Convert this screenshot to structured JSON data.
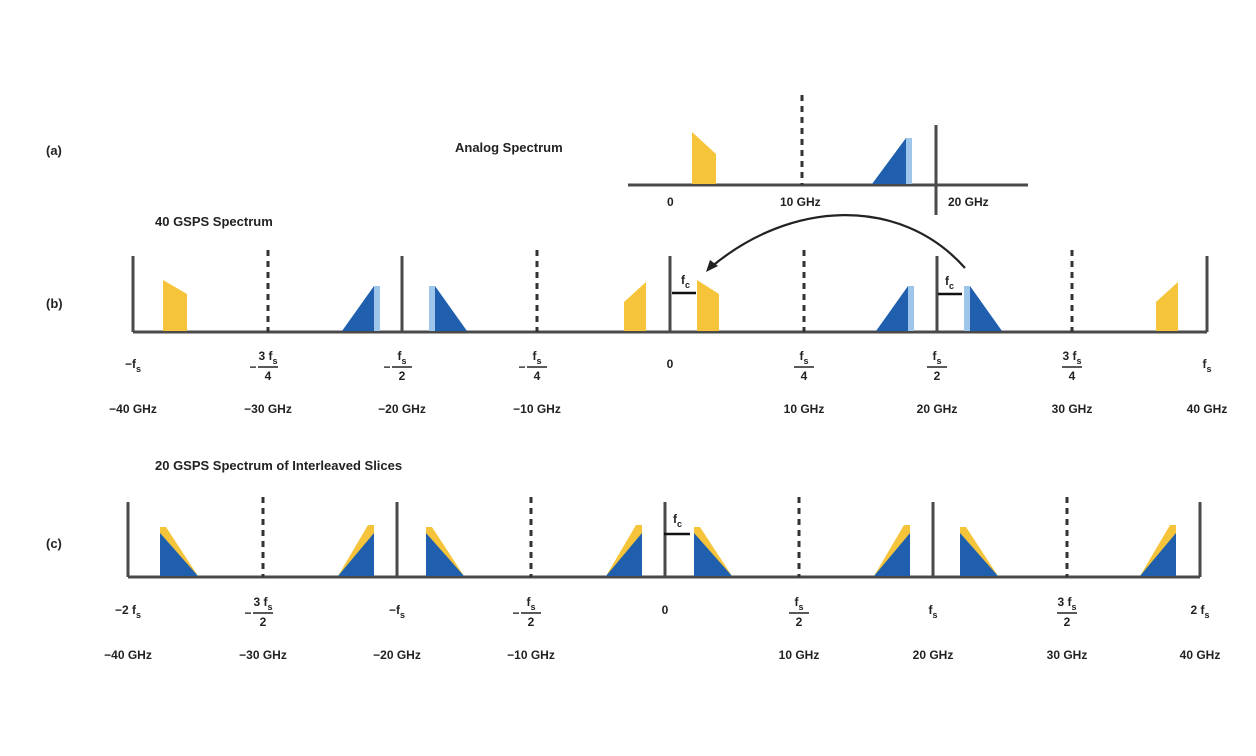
{
  "colors": {
    "yellow": "#F5C43A",
    "blue": "#1F5FAD",
    "light_blue": "#9EC6EA",
    "axis": "#4a4a4a"
  },
  "panel_a": {
    "label": "(a)",
    "title": "Analog Spectrum",
    "ticks": [
      "0",
      "10 GHz",
      "20 GHz"
    ]
  },
  "panel_b": {
    "label": "(b)",
    "title": "40 GSPS Spectrum",
    "ticks": [
      {
        "sign": "−",
        "num": "f",
        "sub": "s",
        "den": "",
        "value": "−40 GHz"
      },
      {
        "sign": "−",
        "num": "3 f",
        "sub": "s",
        "den": "4",
        "value": "−30 GHz"
      },
      {
        "sign": "−",
        "num": "f",
        "sub": "s",
        "den": "2",
        "value": "−20 GHz"
      },
      {
        "sign": "−",
        "num": "f",
        "sub": "s",
        "den": "4",
        "value": "−10 GHz"
      },
      {
        "sign": "",
        "num": "0",
        "sub": "",
        "den": "",
        "value": ""
      },
      {
        "sign": "",
        "num": "f",
        "sub": "s",
        "den": "4",
        "value": "10 GHz"
      },
      {
        "sign": "",
        "num": "f",
        "sub": "s",
        "den": "2",
        "value": "20 GHz"
      },
      {
        "sign": "",
        "num": "3 f",
        "sub": "s",
        "den": "4",
        "value": "30 GHz"
      },
      {
        "sign": "",
        "num": "f",
        "sub": "s",
        "den": "",
        "value": "40 GHz"
      }
    ],
    "shift_label": "f",
    "shift_sub": "c"
  },
  "panel_c": {
    "label": "(c)",
    "title": "20 GSPS Spectrum of Interleaved Slices",
    "ticks": [
      {
        "sign": "−",
        "num": "2 f",
        "sub": "s",
        "den": "",
        "value": "−40 GHz"
      },
      {
        "sign": "−",
        "num": "3 f",
        "sub": "s",
        "den": "2",
        "value": "−30 GHz"
      },
      {
        "sign": "−",
        "num": "f",
        "sub": "s",
        "den": "",
        "value": "−20 GHz"
      },
      {
        "sign": "−",
        "num": "f",
        "sub": "s",
        "den": "2",
        "value": "−10 GHz"
      },
      {
        "sign": "",
        "num": "0",
        "sub": "",
        "den": "",
        "value": ""
      },
      {
        "sign": "",
        "num": "f",
        "sub": "s",
        "den": "2",
        "value": "10 GHz"
      },
      {
        "sign": "",
        "num": "f",
        "sub": "s",
        "den": "",
        "value": "20 GHz"
      },
      {
        "sign": "",
        "num": "3 f",
        "sub": "s",
        "den": "2",
        "value": "30 GHz"
      },
      {
        "sign": "",
        "num": "2 f",
        "sub": "s",
        "den": "",
        "value": "40 GHz"
      }
    ],
    "shift_label": "f",
    "shift_sub": "c"
  }
}
